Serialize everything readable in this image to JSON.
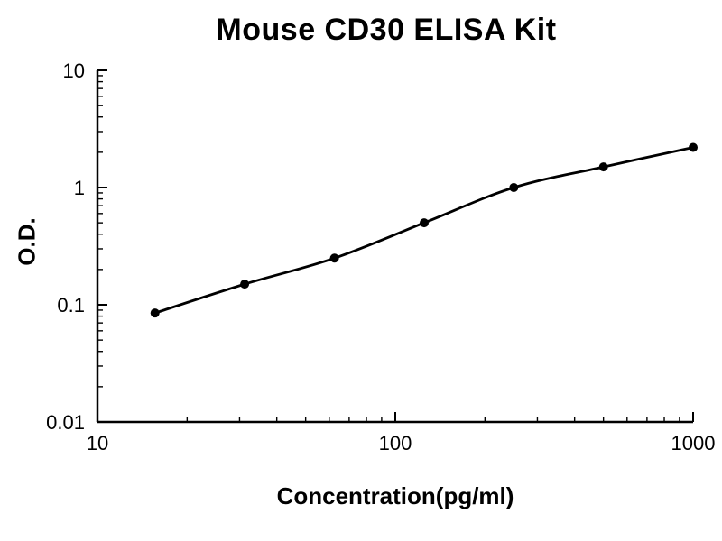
{
  "page": {
    "background_color": "#ffffff",
    "text_color": "#000000"
  },
  "chart_data": {
    "type": "line",
    "title": "Mouse CD30 ELISA Kit",
    "xlabel": "Concentration(pg/ml)",
    "ylabel": "O.D.",
    "x_scale": "log",
    "y_scale": "log",
    "xlim": [
      10,
      1000
    ],
    "ylim": [
      0.01,
      10
    ],
    "grid": false,
    "legend": "none",
    "x_ticks": [
      {
        "value": 10,
        "label": "10"
      },
      {
        "value": 100,
        "label": "100"
      },
      {
        "value": 1000,
        "label": "1000"
      }
    ],
    "y_ticks": [
      {
        "value": 10,
        "label": "10"
      },
      {
        "value": 1,
        "label": "1"
      },
      {
        "value": 0.1,
        "label": "0.1"
      },
      {
        "value": 0.01,
        "label": "0.01"
      }
    ],
    "series": [
      {
        "name": "standard-curve",
        "color": "#000000",
        "marker": "circle",
        "marker_size": 5,
        "line_width": 2.8,
        "points": [
          {
            "x": 15.6,
            "y": 0.085
          },
          {
            "x": 31.2,
            "y": 0.15
          },
          {
            "x": 62.5,
            "y": 0.25
          },
          {
            "x": 125,
            "y": 0.5
          },
          {
            "x": 250,
            "y": 1.0
          },
          {
            "x": 500,
            "y": 1.5
          },
          {
            "x": 1000,
            "y": 2.2
          }
        ]
      }
    ]
  }
}
